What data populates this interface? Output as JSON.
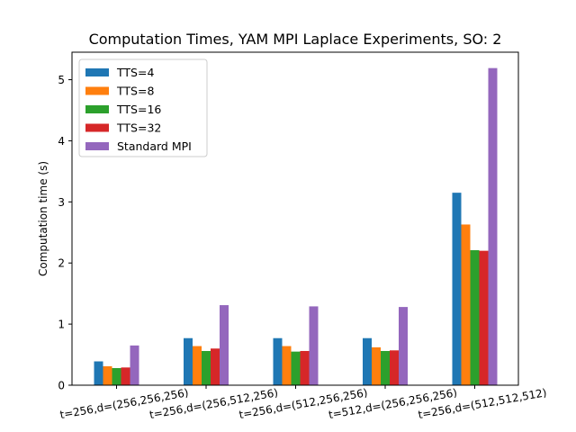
{
  "chart_data": {
    "type": "bar",
    "title": "Computation Times, YAM MPI Laplace Experiments, SO: 2",
    "xlabel": "",
    "ylabel": "Computation time (s)",
    "categories": [
      "t=256,d=(256,256,256)",
      "t=256,d=(256,512,256)",
      "t=256,d=(512,256,256)",
      "t=512,d=(256,256,256)",
      "t=256,d=(512,512,512)"
    ],
    "series": [
      {
        "name": "TTS=4",
        "color": "#1f77b4",
        "values": [
          0.39,
          0.77,
          0.77,
          0.77,
          3.15
        ]
      },
      {
        "name": "TTS=8",
        "color": "#ff7f0e",
        "values": [
          0.31,
          0.64,
          0.64,
          0.62,
          2.63
        ]
      },
      {
        "name": "TTS=16",
        "color": "#2ca02c",
        "values": [
          0.28,
          0.56,
          0.55,
          0.56,
          2.21
        ]
      },
      {
        "name": "TTS=32",
        "color": "#d62728",
        "values": [
          0.29,
          0.6,
          0.56,
          0.57,
          2.2
        ]
      },
      {
        "name": "Standard MPI",
        "color": "#9467bd",
        "values": [
          0.65,
          1.31,
          1.29,
          1.28,
          5.19
        ]
      }
    ],
    "ylim": [
      0,
      5.45
    ],
    "yticks": [
      0,
      1,
      2,
      3,
      4,
      5
    ],
    "legend": "top-left",
    "grid": false
  }
}
